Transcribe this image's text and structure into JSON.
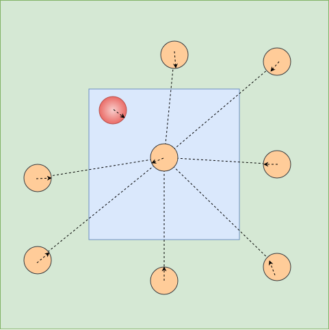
{
  "diagram": {
    "colors": {
      "background_fill": "#d5e8d4",
      "background_stroke": "#82b366",
      "region_fill": "#dae8fc",
      "region_stroke": "#6c8ebf",
      "node_fill": "#ffcc99",
      "node_stroke": "#36393d",
      "special_fill_inner": "#f8cecc",
      "special_fill_outer": "#ea6b66",
      "special_stroke": "#b85450",
      "link_color": "#000000"
    },
    "line_style": "dashed",
    "arrowhead": "open",
    "nodes": [
      {
        "id": "center",
        "role": "hub"
      },
      {
        "id": "top",
        "role": "satellite"
      },
      {
        "id": "top-right",
        "role": "satellite"
      },
      {
        "id": "right",
        "role": "satellite"
      },
      {
        "id": "bottom-right",
        "role": "satellite"
      },
      {
        "id": "bottom",
        "role": "satellite"
      },
      {
        "id": "bottom-left",
        "role": "satellite"
      },
      {
        "id": "left",
        "role": "satellite"
      },
      {
        "id": "special",
        "role": "highlighted"
      }
    ],
    "links": [
      {
        "from": "center",
        "to": "top"
      },
      {
        "from": "center",
        "to": "top-right"
      },
      {
        "from": "center",
        "to": "right"
      },
      {
        "from": "center",
        "to": "bottom-right"
      },
      {
        "from": "center",
        "to": "bottom"
      },
      {
        "from": "center",
        "to": "bottom-left"
      },
      {
        "from": "center",
        "to": "left"
      }
    ]
  }
}
